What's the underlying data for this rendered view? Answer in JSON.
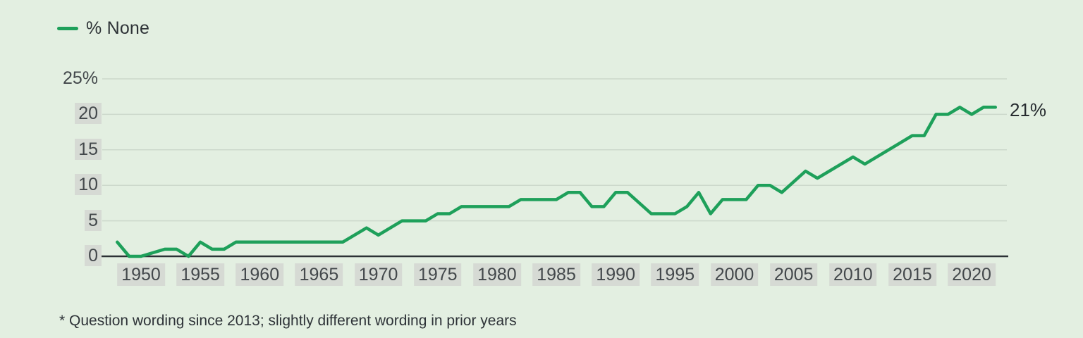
{
  "legend": {
    "label": "% None"
  },
  "annotation": {
    "end_label": "21%"
  },
  "footnote": "* Question wording since 2013; slightly different wording in prior years",
  "colors": {
    "background": "#e3efe1",
    "line": "#1ea05a",
    "gridline": "#ccd8cb",
    "axis": "#2c3135",
    "tick_text": "#43484b",
    "tick_box": "#d6dad4",
    "text": "#2e3337"
  },
  "chart_data": {
    "type": "line",
    "xlabel": "",
    "ylabel": "",
    "xlim": [
      1947,
      2023.5
    ],
    "ylim": [
      0,
      25
    ],
    "grid": true,
    "legend_position": "top-left",
    "x_ticks": [
      {
        "label": "1950",
        "year": 1950
      },
      {
        "label": "1955",
        "year": 1955
      },
      {
        "label": "1960",
        "year": 1960
      },
      {
        "label": "1965",
        "year": 1965
      },
      {
        "label": "1970",
        "year": 1970
      },
      {
        "label": "1975",
        "year": 1975
      },
      {
        "label": "1980",
        "year": 1980
      },
      {
        "label": "1985",
        "year": 1985
      },
      {
        "label": "1990",
        "year": 1990
      },
      {
        "label": "1995",
        "year": 1995
      },
      {
        "label": "2000",
        "year": 2000
      },
      {
        "label": "2005",
        "year": 2005
      },
      {
        "label": "2010",
        "year": 2010
      },
      {
        "label": "2015",
        "year": 2015
      },
      {
        "label": "2020",
        "year": 2020
      }
    ],
    "y_ticks": [
      {
        "label": "25%",
        "value": 25,
        "boxed": false
      },
      {
        "label": "20",
        "value": 20,
        "boxed": true
      },
      {
        "label": "15",
        "value": 15,
        "boxed": true
      },
      {
        "label": "10",
        "value": 10,
        "boxed": true
      },
      {
        "label": "5",
        "value": 5,
        "boxed": true
      },
      {
        "label": "0",
        "value": 0,
        "boxed": true
      }
    ],
    "series": [
      {
        "name": "% None",
        "color": "#1ea05a",
        "points": [
          [
            1948,
            2
          ],
          [
            1949,
            0
          ],
          [
            1950,
            0
          ],
          [
            1952,
            1
          ],
          [
            1953,
            1
          ],
          [
            1954,
            0
          ],
          [
            1955,
            2
          ],
          [
            1956,
            1
          ],
          [
            1957,
            1
          ],
          [
            1958,
            2
          ],
          [
            1967,
            2
          ],
          [
            1969,
            4
          ],
          [
            1970,
            3
          ],
          [
            1972,
            5
          ],
          [
            1974,
            5
          ],
          [
            1975,
            6
          ],
          [
            1976,
            6
          ],
          [
            1977,
            7
          ],
          [
            1981,
            7
          ],
          [
            1982,
            8
          ],
          [
            1985,
            8
          ],
          [
            1986,
            9
          ],
          [
            1987,
            9
          ],
          [
            1988,
            7
          ],
          [
            1989,
            7
          ],
          [
            1990,
            9
          ],
          [
            1991,
            9
          ],
          [
            1993,
            6
          ],
          [
            1995,
            6
          ],
          [
            1996,
            7
          ],
          [
            1997,
            9
          ],
          [
            1998,
            6
          ],
          [
            1999,
            8
          ],
          [
            2001,
            8
          ],
          [
            2002,
            10
          ],
          [
            2003,
            10
          ],
          [
            2004,
            9
          ],
          [
            2006,
            12
          ],
          [
            2007,
            11
          ],
          [
            2010,
            14
          ],
          [
            2011,
            13
          ],
          [
            2015,
            17
          ],
          [
            2016,
            17
          ],
          [
            2017,
            20
          ],
          [
            2018,
            20
          ],
          [
            2019,
            21
          ],
          [
            2020,
            20
          ],
          [
            2021,
            21
          ],
          [
            2022,
            21
          ]
        ]
      }
    ]
  }
}
